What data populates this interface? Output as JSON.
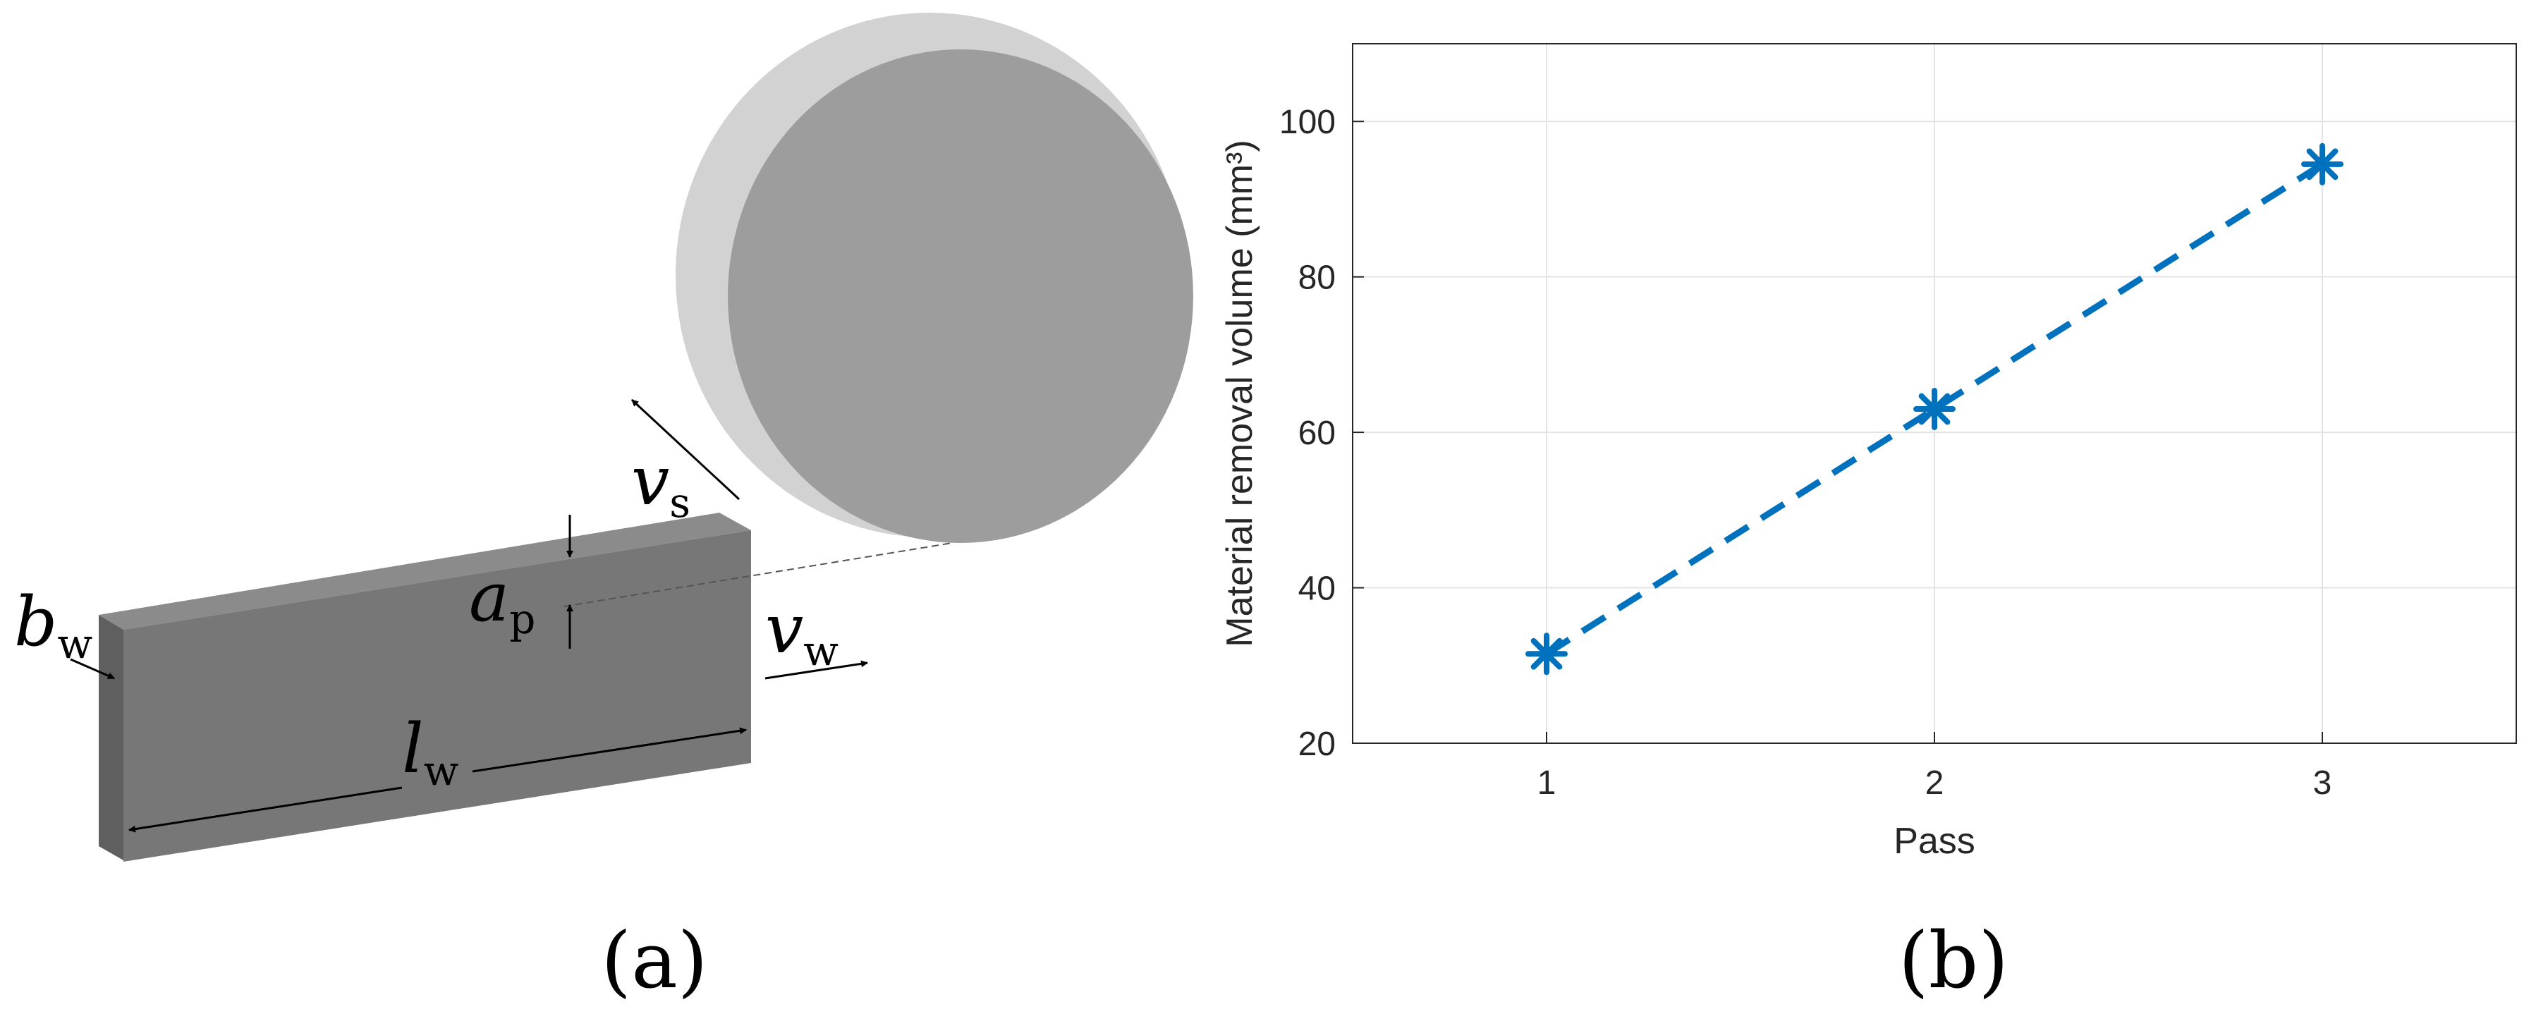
{
  "panel_a": {
    "caption": "(a)",
    "labels": {
      "vs_main": "v",
      "vs_sub": "s",
      "ap_main": "a",
      "ap_sub": "p",
      "vw_main": "v",
      "vw_sub": "w",
      "bw_main": "b",
      "bw_sub": "w",
      "lw_main": "l",
      "lw_sub": "w"
    },
    "colors": {
      "wheel_face": "#9d9d9d",
      "wheel_rim": "#d2d2d2",
      "block_front": "#777777",
      "block_top": "#8b8b8b",
      "block_side": "#5f5f5f"
    }
  },
  "panel_b": {
    "caption": "(b)"
  },
  "chart_data": {
    "type": "line",
    "xlabel": "Pass",
    "ylabel": "Material removal volume (mm³)",
    "x": [
      1,
      2,
      3
    ],
    "x_ticks": [
      "1",
      "2",
      "3"
    ],
    "xlim": [
      0.5,
      3.5
    ],
    "ylim": [
      20,
      110
    ],
    "y_ticks": [
      20,
      40,
      60,
      80,
      100
    ],
    "grid": true,
    "series": [
      {
        "values": [
          31.5,
          63,
          94.5
        ],
        "color": "#0072bd",
        "line_style": "dashed",
        "marker": "asterisk"
      }
    ]
  }
}
